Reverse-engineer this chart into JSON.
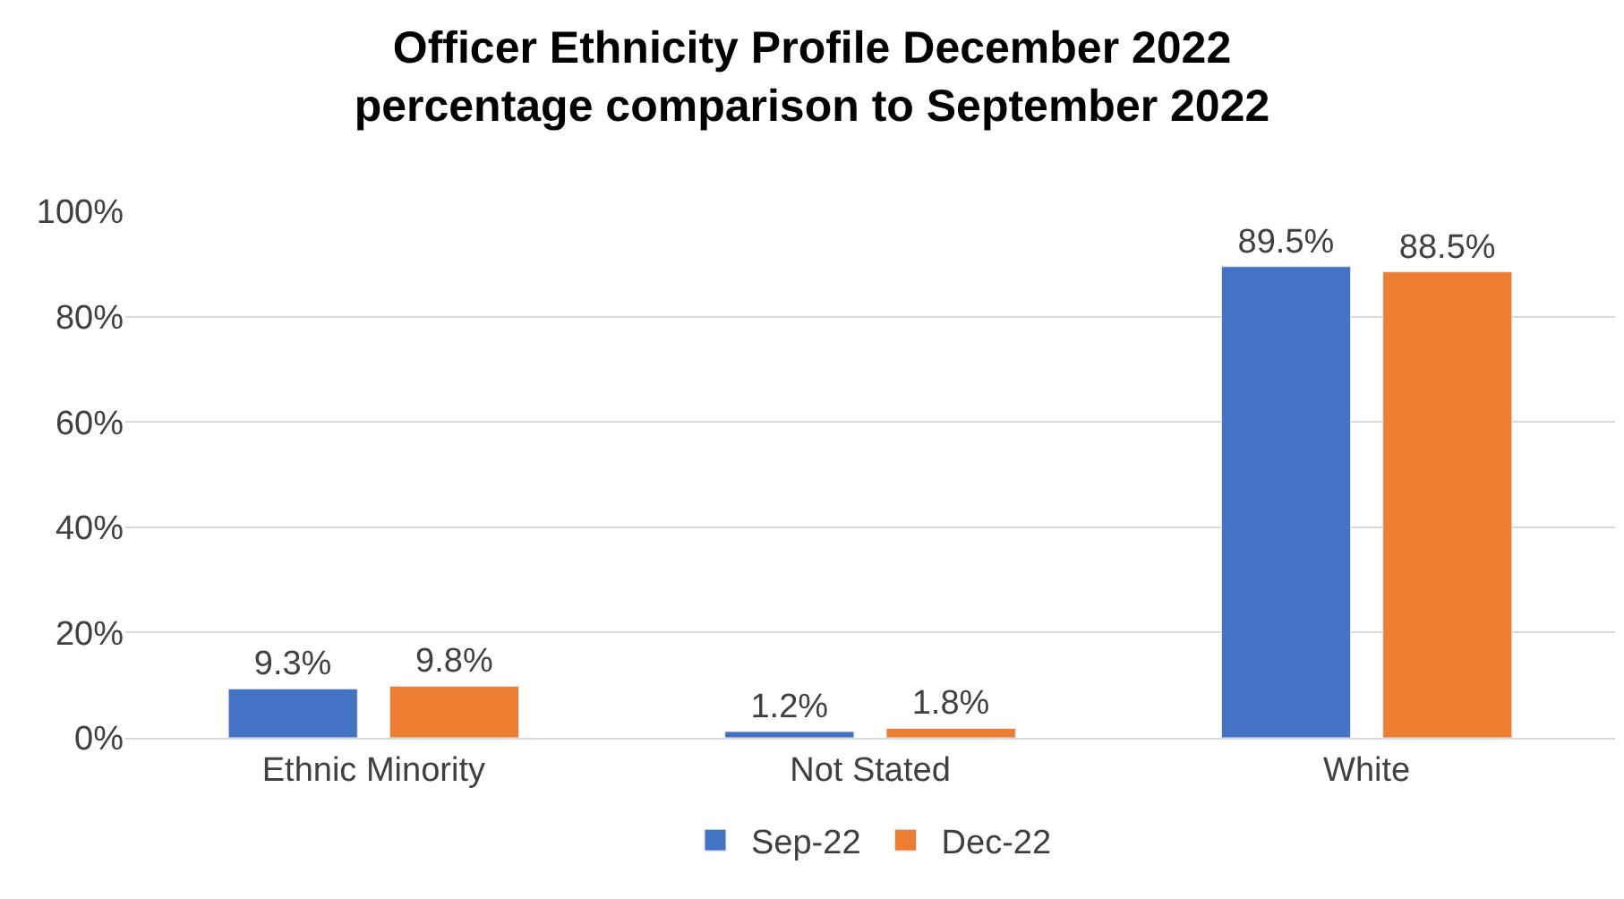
{
  "chart_data": {
    "type": "bar",
    "title": "Officer Ethnicity Profile December 2022\npercentage comparison to September 2022",
    "categories": [
      "Ethnic Minority",
      "Not Stated",
      "White"
    ],
    "series": [
      {
        "name": "Sep-22",
        "color": "#4472c4",
        "values": [
          9.3,
          1.2,
          89.5
        ],
        "value_labels": [
          "9.3%",
          "1.2%",
          "89.5%"
        ]
      },
      {
        "name": "Dec-22",
        "color": "#ed7d31",
        "values": [
          9.8,
          1.8,
          88.5
        ],
        "value_labels": [
          "9.8%",
          "1.8%",
          "88.5%"
        ]
      }
    ],
    "ylim": [
      0,
      100
    ],
    "yticks": [
      {
        "value": 0,
        "label": "0%"
      },
      {
        "value": 20,
        "label": "20%"
      },
      {
        "value": 40,
        "label": "40%"
      },
      {
        "value": 60,
        "label": "60%"
      },
      {
        "value": 80,
        "label": "80%"
      },
      {
        "value": 100,
        "label": "100%"
      }
    ],
    "grid": "y",
    "legend": "bottom"
  }
}
